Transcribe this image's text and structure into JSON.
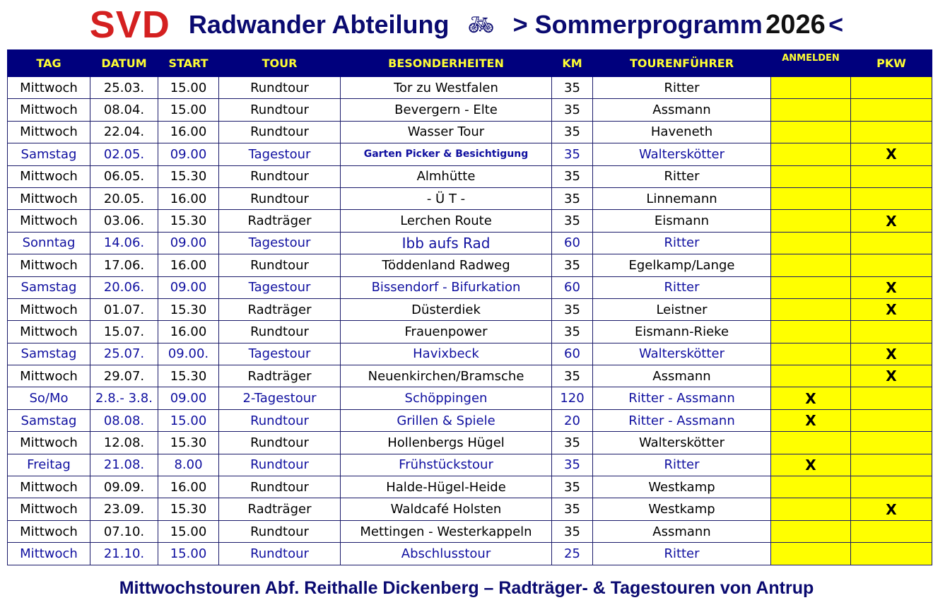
{
  "header": {
    "logo": "SVD",
    "title": "Radwander Abteilung",
    "bike_icon": "bicycle-icon",
    "subtitle_pre": "> Sommerprogramm",
    "year": "2026",
    "subtitle_post": "<"
  },
  "colors": {
    "header_bg": "#00007d",
    "header_text": "#ffff33",
    "logo": "#d42020",
    "highlight_row_text": "#1010a0",
    "signup_cells": "#ffff00"
  },
  "columns": [
    "TAG",
    "DATUM",
    "START",
    "TOUR",
    "BESONDERHEITEN",
    "KM",
    "TOURENFÜHRER",
    "ANMELDEN",
    "PKW"
  ],
  "rows": [
    {
      "tag": "Mittwoch",
      "datum": "25.03.",
      "start": "15.00",
      "tour": "Rundtour",
      "info": "Tor zu Westfalen",
      "km": "35",
      "fuehrer": "Ritter",
      "anmelden": "",
      "pkw": "",
      "highlight": false
    },
    {
      "tag": "Mittwoch",
      "datum": "08.04.",
      "start": "15.00",
      "tour": "Rundtour",
      "info": "Bevergern - Elte",
      "km": "35",
      "fuehrer": "Assmann",
      "anmelden": "",
      "pkw": "",
      "highlight": false
    },
    {
      "tag": "Mittwoch",
      "datum": "22.04.",
      "start": "16.00",
      "tour": "Rundtour",
      "info": "Wasser Tour",
      "km": "35",
      "fuehrer": "Haveneth",
      "anmelden": "",
      "pkw": "",
      "highlight": false
    },
    {
      "tag": "Samstag",
      "datum": "02.05.",
      "start": "09.00",
      "tour": "Tagestour",
      "info": "Garten Picker & Besichtigung",
      "km": "35",
      "fuehrer": "Walterskötter",
      "anmelden": "",
      "pkw": "X",
      "highlight": true
    },
    {
      "tag": "Mittwoch",
      "datum": "06.05.",
      "start": "15.30",
      "tour": "Rundtour",
      "info": "Almhütte",
      "km": "35",
      "fuehrer": "Ritter",
      "anmelden": "",
      "pkw": "",
      "highlight": false
    },
    {
      "tag": "Mittwoch",
      "datum": "20.05.",
      "start": "16.00",
      "tour": "Rundtour",
      "info": "-   Ü T   -",
      "km": "35",
      "fuehrer": "Linnemann",
      "anmelden": "",
      "pkw": "",
      "highlight": false
    },
    {
      "tag": "Mittwoch",
      "datum": "03.06.",
      "start": "15.30",
      "tour": "Radträger",
      "info": "Lerchen Route",
      "km": "35",
      "fuehrer": "Eismann",
      "anmelden": "",
      "pkw": "X",
      "highlight": false
    },
    {
      "tag": "Sonntag",
      "datum": "14.06.",
      "start": "09.00",
      "tour": "Tagestour",
      "info": "Ibb aufs Rad",
      "km": "60",
      "fuehrer": "Ritter",
      "anmelden": "",
      "pkw": "",
      "highlight": true
    },
    {
      "tag": "Mittwoch",
      "datum": "17.06.",
      "start": "16.00",
      "tour": "Rundtour",
      "info": "Töddenland  Radweg",
      "km": "35",
      "fuehrer": "Egelkamp/Lange",
      "anmelden": "",
      "pkw": "",
      "highlight": false
    },
    {
      "tag": "Samstag",
      "datum": "20.06.",
      "start": "09.00",
      "tour": "Tagestour",
      "info": "Bissendorf - Bifurkation",
      "km": "60",
      "fuehrer": "Ritter",
      "anmelden": "",
      "pkw": "X",
      "highlight": true
    },
    {
      "tag": "Mittwoch",
      "datum": "01.07.",
      "start": "15.30",
      "tour": "Radträger",
      "info": "Düsterdiek",
      "km": "35",
      "fuehrer": "Leistner",
      "anmelden": "",
      "pkw": "X",
      "highlight": false
    },
    {
      "tag": "Mittwoch",
      "datum": "15.07.",
      "start": "16.00",
      "tour": "Rundtour",
      "info": "Frauenpower",
      "km": "35",
      "fuehrer": "Eismann-Rieke",
      "anmelden": "",
      "pkw": "",
      "highlight": false
    },
    {
      "tag": "Samstag",
      "datum": "25.07.",
      "start": "09.00.",
      "tour": "Tagestour",
      "info": "Havixbeck",
      "km": "60",
      "fuehrer": "Walterskötter",
      "anmelden": "",
      "pkw": "X",
      "highlight": true
    },
    {
      "tag": "Mittwoch",
      "datum": "29.07.",
      "start": "15.30",
      "tour": "Radträger",
      "info": "Neuenkirchen/Bramsche",
      "km": "35",
      "fuehrer": "Assmann",
      "anmelden": "",
      "pkw": "X",
      "highlight": false
    },
    {
      "tag": "So/Mo",
      "datum": "2.8.- 3.8.",
      "start": "09.00",
      "tour": "2-Tagestour",
      "info": "Schöppingen",
      "km": "120",
      "fuehrer": "Ritter -  Assmann",
      "anmelden": "X",
      "pkw": "",
      "highlight": true
    },
    {
      "tag": "Samstag",
      "datum": "08.08.",
      "start": "15.00",
      "tour": "Rundtour",
      "info": "Grillen  &  Spiele",
      "km": "20",
      "fuehrer": "Ritter - Assmann",
      "anmelden": "X",
      "pkw": "",
      "highlight": true
    },
    {
      "tag": "Mittwoch",
      "datum": "12.08.",
      "start": "15.30",
      "tour": "Rundtour",
      "info": "Hollenbergs Hügel",
      "km": "35",
      "fuehrer": "Walterskötter",
      "anmelden": "",
      "pkw": "",
      "highlight": false
    },
    {
      "tag": "Freitag",
      "datum": "21.08.",
      "start": "8.00",
      "tour": "Rundtour",
      "info": "Frühstückstour",
      "km": "35",
      "fuehrer": "Ritter",
      "anmelden": "X",
      "pkw": "",
      "highlight": true
    },
    {
      "tag": "Mittwoch",
      "datum": "09.09.",
      "start": "16.00",
      "tour": "Rundtour",
      "info": "Halde-Hügel-Heide",
      "km": "35",
      "fuehrer": "Westkamp",
      "anmelden": "",
      "pkw": "",
      "highlight": false
    },
    {
      "tag": "Mittwoch",
      "datum": "23.09.",
      "start": "15.30",
      "tour": "Radträger",
      "info": "Waldcafé  Holsten",
      "km": "35",
      "fuehrer": "Westkamp",
      "anmelden": "",
      "pkw": "X",
      "highlight": false
    },
    {
      "tag": "Mittwoch",
      "datum": "07.10.",
      "start": "15.00",
      "tour": "Rundtour",
      "info": "Mettingen - Westerkappeln",
      "km": "35",
      "fuehrer": "Assmann",
      "anmelden": "",
      "pkw": "",
      "highlight": false
    },
    {
      "tag": "Mittwoch",
      "datum": "21.10.",
      "start": "15.00",
      "tour": "Rundtour",
      "info": "Abschlusstour",
      "km": "25",
      "fuehrer": "Ritter",
      "anmelden": "",
      "pkw": "",
      "highlight": true
    }
  ],
  "footer": "Mittwochstouren Abf. Reithalle Dickenberg – Radträger- & Tagestouren von Antrup"
}
